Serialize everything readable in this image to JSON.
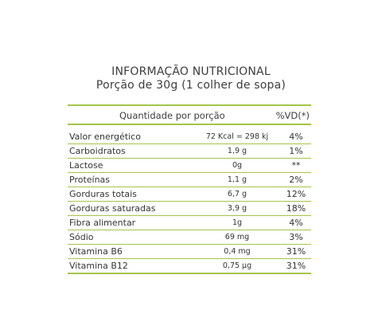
{
  "title_line1": "INFORMAÇÃO NUTRICIONAL",
  "title_line2": "Porção de 30g (1 colher de sopa)",
  "header": {
    "quantity_label": "Quantidade por porção",
    "vd_label": "%VD(*)"
  },
  "rows": [
    {
      "name": "Valor energético",
      "amount": "72 Kcal = 298 kj",
      "vd": "4%"
    },
    {
      "name": "Carboidratos",
      "amount": "1,9 g",
      "vd": "1%"
    },
    {
      "name": "Lactose",
      "amount": "0g",
      "vd": "**"
    },
    {
      "name": "Proteínas",
      "amount": "1,1 g",
      "vd": "2%"
    },
    {
      "name": "Gorduras totais",
      "amount": "6,7 g",
      "vd": "12%"
    },
    {
      "name": "Gorduras saturadas",
      "amount": "3,9 g",
      "vd": "18%"
    },
    {
      "name": "Fibra alimentar",
      "amount": "1g",
      "vd": "4%"
    },
    {
      "name": "Sódio",
      "amount": "69 mg",
      "vd": "3%"
    },
    {
      "name": "Vitamina B6",
      "amount": "0,4 mg",
      "vd": "31%"
    },
    {
      "name": "Vitamina B12",
      "amount": "0,75 µg",
      "vd": "31%"
    }
  ],
  "colors": {
    "rule_green": "#a4c54a",
    "text": "#333333"
  }
}
